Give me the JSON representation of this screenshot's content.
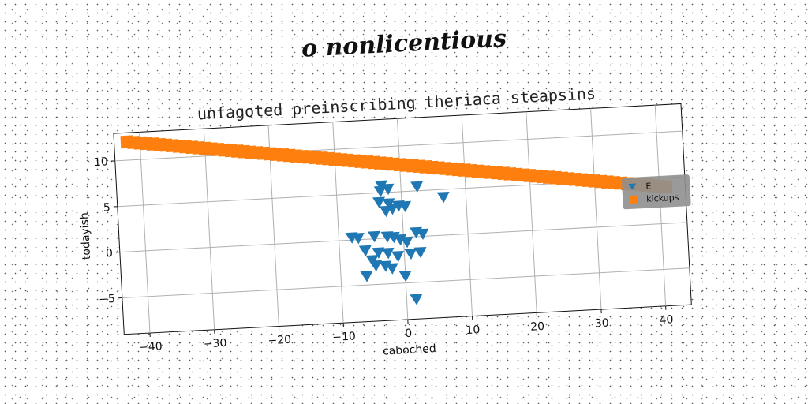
{
  "suptitle": "o nonlicentious",
  "chart_data": {
    "type": "scatter",
    "title": "unfagoted preinscribing theriaca steapsins",
    "xlabel": "caboched",
    "ylabel": "todayish",
    "xlim": [
      -44,
      44
    ],
    "ylim": [
      -9,
      13
    ],
    "xticks": [
      -40,
      -30,
      -20,
      -10,
      0,
      10,
      20,
      30,
      40
    ],
    "yticks": [
      -5,
      0,
      5,
      10
    ],
    "xtick_labels": [
      "−40",
      "−30",
      "−20",
      "−10",
      "0",
      "10",
      "20",
      "30",
      "40"
    ],
    "ytick_labels": [
      "−5",
      "0",
      "5",
      "10"
    ],
    "grid": true,
    "legend_position": "right",
    "series": [
      {
        "name": "E",
        "marker": "triangle-down",
        "color": "#1f77b4",
        "points": [
          [
            -3,
            5.8
          ],
          [
            -2,
            5.4
          ],
          [
            -3.2,
            5.2
          ],
          [
            2.5,
            5.5
          ],
          [
            6.5,
            4.2
          ],
          [
            -3.5,
            4.0
          ],
          [
            -2.0,
            3.8
          ],
          [
            -0.5,
            3.5
          ],
          [
            0.5,
            3.4
          ],
          [
            -1.5,
            3.2
          ],
          [
            -2.5,
            3.0
          ],
          [
            -8,
            0.3
          ],
          [
            -7,
            0.2
          ],
          [
            -4.5,
            0.3
          ],
          [
            -2.5,
            0.2
          ],
          [
            -1.5,
            0.1
          ],
          [
            -0.5,
            -0.2
          ],
          [
            2,
            0.5
          ],
          [
            3,
            0.3
          ],
          [
            0.5,
            -0.5
          ],
          [
            -6,
            -1.2
          ],
          [
            -4,
            -1.5
          ],
          [
            -2.5,
            -1.6
          ],
          [
            -1,
            -2.0
          ],
          [
            1,
            -1.8
          ],
          [
            2.5,
            -1.7
          ],
          [
            -5,
            -2.3
          ],
          [
            -4.5,
            -2.9
          ],
          [
            -3,
            -3.0
          ],
          [
            -2,
            -3.3
          ],
          [
            -6,
            -4.0
          ],
          [
            0,
            -4.2
          ],
          [
            1.5,
            -6.8
          ]
        ]
      },
      {
        "name": "kickups",
        "marker": "square",
        "color": "#ff7f0e",
        "line": {
          "x_from": -42,
          "x_to": 41,
          "y_at_start": 12.0,
          "y_at_end": 4.0,
          "count": 84
        }
      }
    ]
  }
}
